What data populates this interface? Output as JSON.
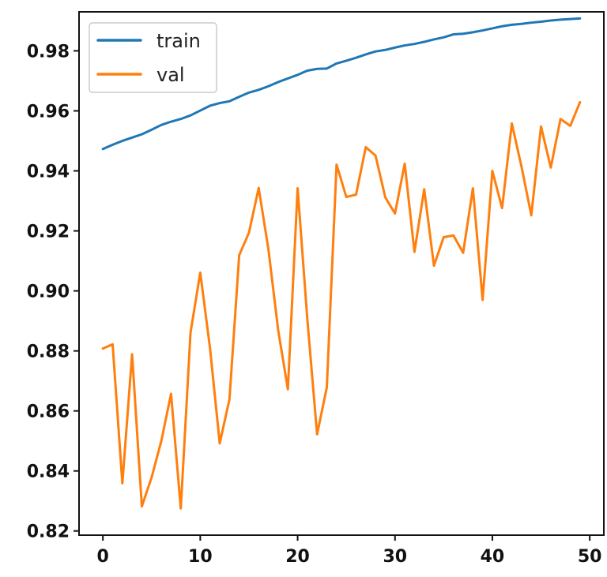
{
  "chart_data": {
    "type": "line",
    "x": [
      0,
      1,
      2,
      3,
      4,
      5,
      6,
      7,
      8,
      9,
      10,
      11,
      12,
      13,
      14,
      15,
      16,
      17,
      18,
      19,
      20,
      21,
      22,
      23,
      24,
      25,
      26,
      27,
      28,
      29,
      30,
      31,
      32,
      33,
      34,
      35,
      36,
      37,
      38,
      39,
      40,
      41,
      42,
      43,
      44,
      45,
      46,
      47,
      48,
      49
    ],
    "series": [
      {
        "name": "train",
        "color": "#1f77b4",
        "values": [
          0.9473,
          0.9487,
          0.95,
          0.9511,
          0.9522,
          0.9537,
          0.9553,
          0.9564,
          0.9573,
          0.9585,
          0.9601,
          0.9617,
          0.9626,
          0.9632,
          0.9647,
          0.9661,
          0.967,
          0.9682,
          0.9696,
          0.9708,
          0.972,
          0.9734,
          0.974,
          0.9741,
          0.9758,
          0.9767,
          0.9777,
          0.9788,
          0.9798,
          0.9803,
          0.9811,
          0.9818,
          0.9823,
          0.983,
          0.9838,
          0.9845,
          0.9855,
          0.9857,
          0.9862,
          0.9868,
          0.9875,
          0.9882,
          0.9887,
          0.989,
          0.9894,
          0.9897,
          0.9901,
          0.9904,
          0.9906,
          0.9908
        ]
      },
      {
        "name": "val",
        "color": "#ff7f0e",
        "values": [
          0.8808,
          0.8822,
          0.8359,
          0.8789,
          0.8282,
          0.8378,
          0.85,
          0.8657,
          0.8275,
          0.8861,
          0.9061,
          0.881,
          0.8492,
          0.8639,
          0.9119,
          0.9194,
          0.9343,
          0.9139,
          0.887,
          0.8672,
          0.9342,
          0.8905,
          0.8522,
          0.8679,
          0.9421,
          0.9313,
          0.9321,
          0.9479,
          0.9451,
          0.9312,
          0.9258,
          0.9424,
          0.913,
          0.9339,
          0.9084,
          0.9179,
          0.9185,
          0.9127,
          0.9342,
          0.897,
          0.94,
          0.9276,
          0.9558,
          0.9413,
          0.9252,
          0.9548,
          0.9411,
          0.9573,
          0.955,
          0.9629
        ]
      }
    ],
    "xlim": [
      -2.45,
      51.45
    ],
    "ylim": [
      0.8186,
      0.993
    ],
    "xticks": [
      0,
      10,
      20,
      30,
      40,
      50
    ],
    "xtick_labels": [
      "0",
      "10",
      "20",
      "30",
      "40",
      "50"
    ],
    "yticks": [
      0.82,
      0.84,
      0.86,
      0.88,
      0.9,
      0.92,
      0.94,
      0.96,
      0.98
    ],
    "ytick_labels": [
      "0.82",
      "0.84",
      "0.86",
      "0.88",
      "0.90",
      "0.92",
      "0.94",
      "0.96",
      "0.98"
    ],
    "title": "",
    "xlabel": "",
    "ylabel": "",
    "grid": false,
    "legend": {
      "location": "top-left",
      "entries": [
        "train",
        "val"
      ]
    }
  }
}
